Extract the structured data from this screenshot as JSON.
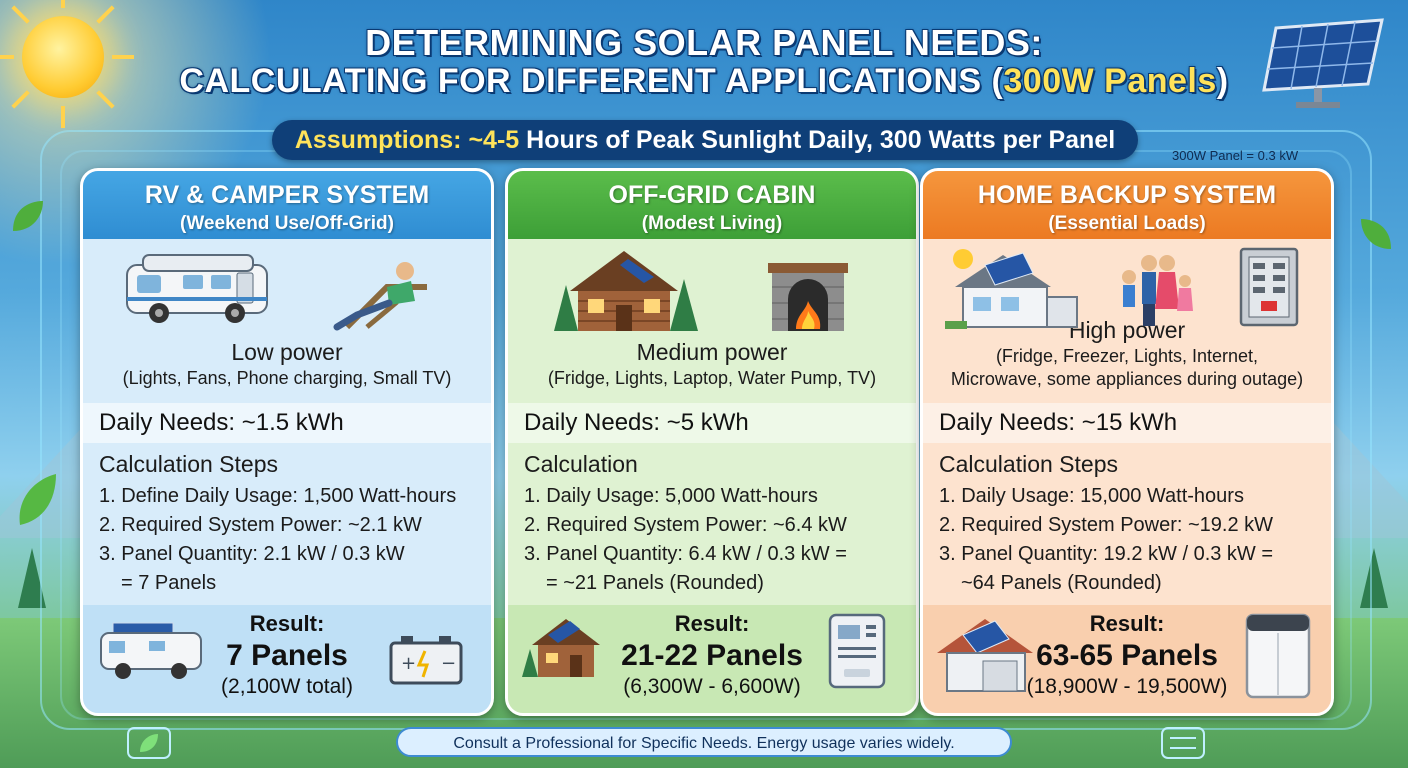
{
  "title": {
    "line1": "DETERMINING SOLAR PANEL NEEDS:",
    "line2_prefix": "CALCULATING FOR DIFFERENT APPLICATIONS (",
    "line2_highlight": "300W Panels",
    "line2_suffix": ")"
  },
  "assumptions": {
    "label": "Assumptions:",
    "hours_highlight": "~4-5",
    "text": "Hours of Peak Sunlight Daily, 300 Watts per Panel"
  },
  "panel_note": "300W Panel = 0.3 kW",
  "cards": [
    {
      "title": "RV & CAMPER SYSTEM",
      "subtitle": "(Weekend Use/Off-Grid)",
      "power_level": "Low power",
      "power_detail_1": "(Lights, Fans, Phone charging, Small TV)",
      "power_detail_2": "",
      "daily_label": "Daily Needs:",
      "daily_value": "~1.5 kWh",
      "steps_title": "Calculation Steps",
      "steps": [
        "1. Define Daily Usage: 1,500 Watt-hours",
        "2. Required System Power: ~2.1 kW",
        "3. Panel Quantity: 2.1 kW / 0.3 kW",
        "= 7 Panels"
      ],
      "result_label": "Result:",
      "result_value": "7 Panels",
      "result_total": "(2,100W total)"
    },
    {
      "title": "OFF-GRID CABIN",
      "subtitle": "(Modest Living)",
      "power_level": "Medium power",
      "power_detail_1": "(Fridge, Lights, Laptop, Water Pump, TV)",
      "power_detail_2": "",
      "daily_label": "Daily Needs:",
      "daily_value": "~5 kWh",
      "steps_title": "Calculation",
      "steps": [
        "1. Daily Usage: 5,000 Watt-hours",
        "2. Required System Power: ~6.4 kW",
        "3. Panel Quantity: 6.4 kW / 0.3 kW =",
        "= ~21 Panels (Rounded)"
      ],
      "result_label": "Result:",
      "result_value": "21-22 Panels",
      "result_total": "(6,300W - 6,600W)"
    },
    {
      "title": "HOME BACKUP SYSTEM",
      "subtitle": "(Essential Loads)",
      "power_level": "High power",
      "power_detail_1": "(Fridge, Freezer, Lights, Internet,",
      "power_detail_2": "Microwave, some appliances during outage)",
      "daily_label": "Daily Needs:",
      "daily_value": "~15 kWh",
      "steps_title": "Calculation Steps",
      "steps": [
        "1. Daily Usage: 15,000 Watt-hours",
        "2. Required System Power: ~19.2 kW",
        "3. Panel Quantity: 19.2 kW / 0.3 kW =",
        "~64 Panels (Rounded)"
      ],
      "result_label": "Result:",
      "result_value": "63-65 Panels",
      "result_total": "(18,900W - 19,500W)"
    }
  ],
  "footer": "Consult a Professional for Specific Needs. Energy usage varies widely.",
  "icons": [
    "sun-icon",
    "solar-panel-icon",
    "rv-icon",
    "relaxing-person-icon",
    "cabin-icon",
    "fireplace-icon",
    "house-solar-icon",
    "family-icon",
    "electrical-panel-icon",
    "battery-icon",
    "inverter-icon",
    "home-battery-icon",
    "leaf-icon"
  ]
}
